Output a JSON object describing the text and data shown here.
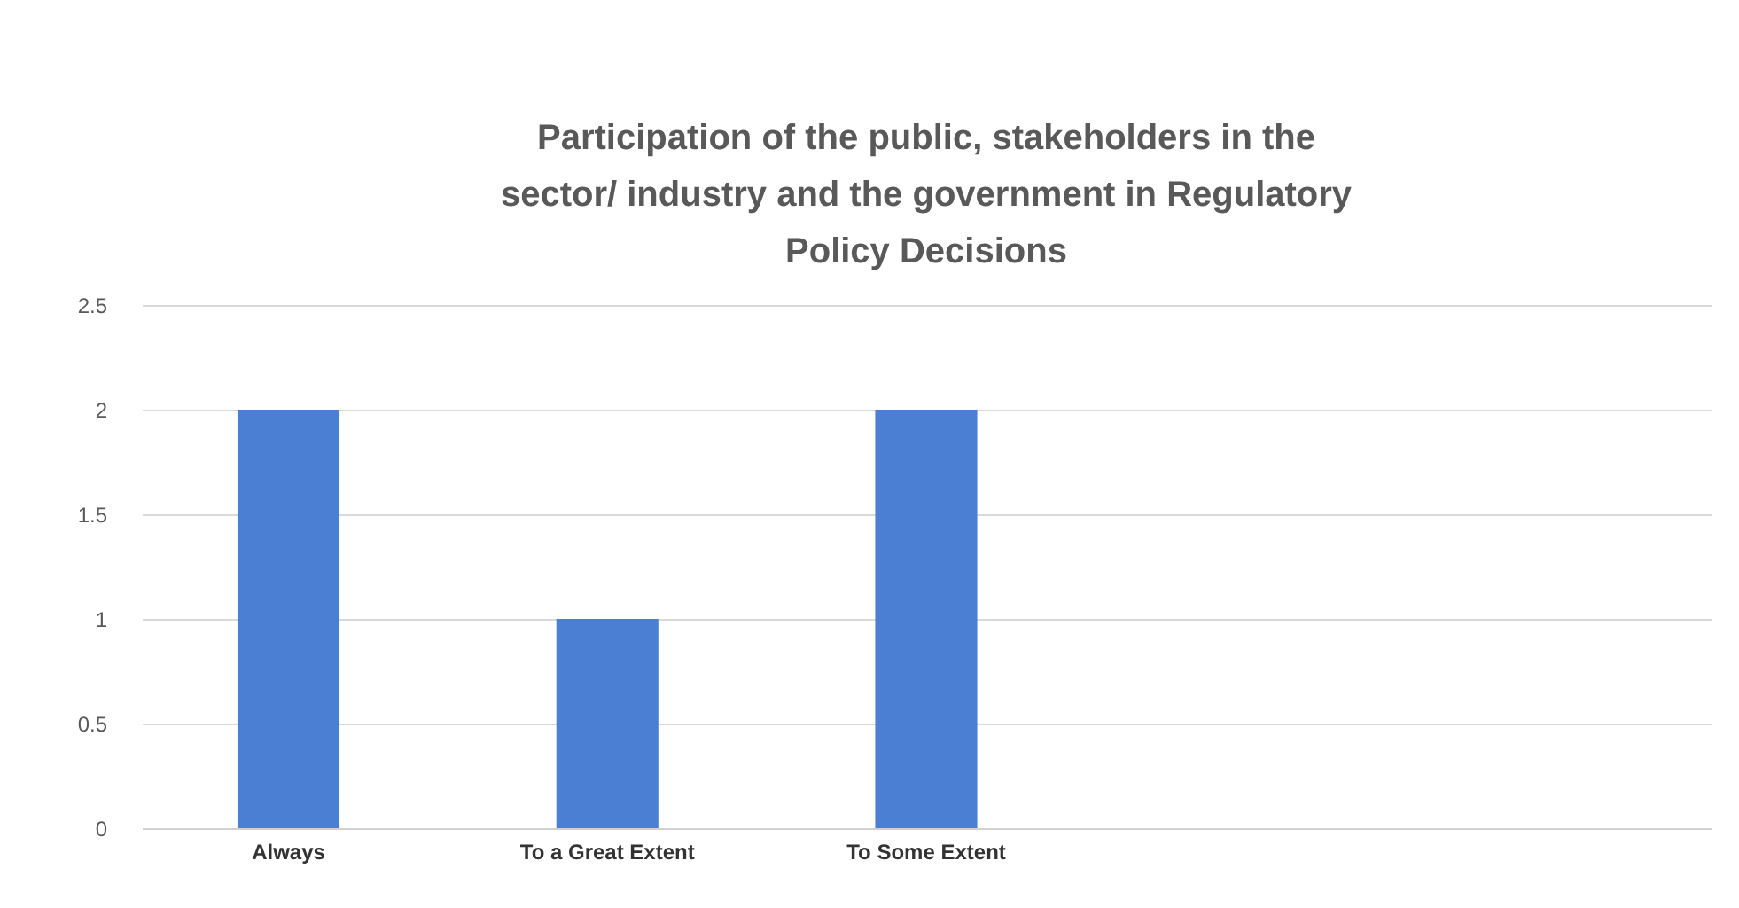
{
  "chart_data": {
    "type": "bar",
    "title": "Participation of the public, stakeholders in the sector/ industry and the government in Regulatory Policy Decisions",
    "categories": [
      "Always",
      "To a Great Extent",
      "To Some Extent",
      null,
      null
    ],
    "values": [
      2,
      1,
      2,
      null,
      null
    ],
    "color": "#4a7fd4",
    "ylim": [
      0,
      2.5
    ],
    "yticks": [
      0,
      0.5,
      1,
      1.5,
      2,
      2.5
    ],
    "grid": "y"
  }
}
